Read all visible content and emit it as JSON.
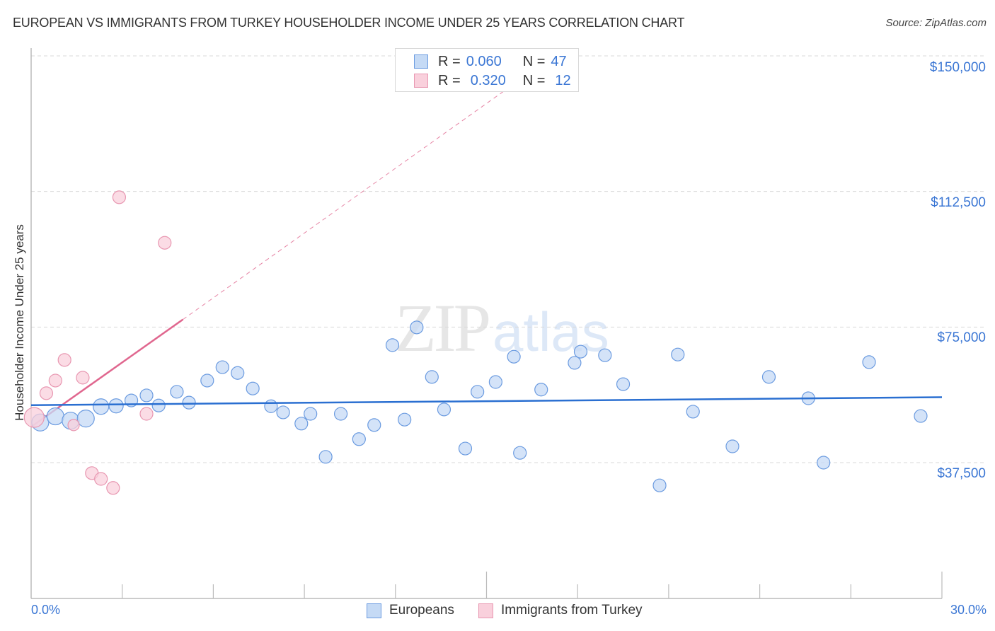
{
  "header": {
    "title": "EUROPEAN VS IMMIGRANTS FROM TURKEY HOUSEHOLDER INCOME UNDER 25 YEARS CORRELATION CHART",
    "source": "Source: ZipAtlas.com"
  },
  "watermark": {
    "zip": "ZIP",
    "atlas": "atlas"
  },
  "colors": {
    "blue_fill": "#c5daf5",
    "blue_stroke": "#6b9be0",
    "blue_line": "#2a6fd1",
    "pink_fill": "#f9d0dc",
    "pink_stroke": "#e897b1",
    "pink_line": "#e0678f",
    "axis_text": "#3a76d4",
    "grid": "#d9d9d9"
  },
  "stats_legend": {
    "rows": [
      {
        "r_label": "R =",
        "r_value": "0.060",
        "n_label": "N =",
        "n_value": "47"
      },
      {
        "r_label": "R =",
        "r_value": "0.320",
        "n_label": "N =",
        "n_value": "12"
      }
    ]
  },
  "bottom_legend": {
    "europeans": "Europeans",
    "turkey": "Immigrants from Turkey"
  },
  "axes": {
    "y_title": "Householder Income Under 25 years",
    "y_ticks": [
      "$150,000",
      "$112,500",
      "$75,000",
      "$37,500"
    ],
    "x_min_label": "0.0%",
    "x_max_label": "30.0%"
  },
  "chart_data": {
    "type": "scatter",
    "title": "EUROPEAN VS IMMIGRANTS FROM TURKEY HOUSEHOLDER INCOME UNDER 25 YEARS CORRELATION CHART",
    "xlabel": "",
    "ylabel": "Householder Income Under 25 years",
    "xlim": [
      0,
      30
    ],
    "ylim": [
      37500,
      150000
    ],
    "x_ticks": [
      "0.0%",
      "30.0%"
    ],
    "y_ticks": [
      37500,
      75000,
      112500,
      150000
    ],
    "grid": true,
    "legend_position": "bottom",
    "series": [
      {
        "name": "Europeans",
        "R": 0.06,
        "N": 47,
        "trend": {
          "x0": 0.0,
          "y0": 53400,
          "x1": 30.0,
          "y1": 55600
        },
        "points": [
          {
            "x": 0.3,
            "y": 48600,
            "s": 12
          },
          {
            "x": 0.8,
            "y": 50300,
            "s": 12
          },
          {
            "x": 1.3,
            "y": 49100,
            "s": 12
          },
          {
            "x": 1.8,
            "y": 49700,
            "s": 12
          },
          {
            "x": 2.3,
            "y": 53000,
            "s": 11
          },
          {
            "x": 2.8,
            "y": 53200,
            "s": 10
          },
          {
            "x": 3.3,
            "y": 54700,
            "s": 9
          },
          {
            "x": 3.8,
            "y": 56100,
            "s": 9
          },
          {
            "x": 4.2,
            "y": 53300,
            "s": 9
          },
          {
            "x": 4.8,
            "y": 57100,
            "s": 9
          },
          {
            "x": 5.2,
            "y": 54100,
            "s": 9
          },
          {
            "x": 5.8,
            "y": 60200,
            "s": 9
          },
          {
            "x": 6.3,
            "y": 63900,
            "s": 9
          },
          {
            "x": 6.8,
            "y": 62300,
            "s": 9
          },
          {
            "x": 7.3,
            "y": 58000,
            "s": 9
          },
          {
            "x": 7.9,
            "y": 53100,
            "s": 9
          },
          {
            "x": 8.3,
            "y": 51400,
            "s": 9
          },
          {
            "x": 8.9,
            "y": 48300,
            "s": 9
          },
          {
            "x": 9.2,
            "y": 51000,
            "s": 9
          },
          {
            "x": 9.7,
            "y": 39100,
            "s": 9
          },
          {
            "x": 10.2,
            "y": 51000,
            "s": 9
          },
          {
            "x": 10.8,
            "y": 44000,
            "s": 9
          },
          {
            "x": 11.3,
            "y": 47900,
            "s": 9
          },
          {
            "x": 11.9,
            "y": 70000,
            "s": 9
          },
          {
            "x": 12.3,
            "y": 49400,
            "s": 9
          },
          {
            "x": 12.7,
            "y": 74900,
            "s": 9
          },
          {
            "x": 13.2,
            "y": 61200,
            "s": 9
          },
          {
            "x": 13.6,
            "y": 52200,
            "s": 9
          },
          {
            "x": 14.3,
            "y": 41400,
            "s": 9
          },
          {
            "x": 14.7,
            "y": 57100,
            "s": 9
          },
          {
            "x": 15.3,
            "y": 59800,
            "s": 9
          },
          {
            "x": 15.9,
            "y": 66800,
            "s": 9
          },
          {
            "x": 16.1,
            "y": 40200,
            "s": 9
          },
          {
            "x": 16.8,
            "y": 57700,
            "s": 9
          },
          {
            "x": 17.9,
            "y": 65100,
            "s": 9
          },
          {
            "x": 18.1,
            "y": 68200,
            "s": 9
          },
          {
            "x": 18.9,
            "y": 67200,
            "s": 9
          },
          {
            "x": 19.5,
            "y": 59200,
            "s": 9
          },
          {
            "x": 20.7,
            "y": 31200,
            "s": 9
          },
          {
            "x": 21.3,
            "y": 67400,
            "s": 9
          },
          {
            "x": 21.8,
            "y": 51600,
            "s": 9
          },
          {
            "x": 23.1,
            "y": 42000,
            "s": 9
          },
          {
            "x": 24.3,
            "y": 61200,
            "s": 9
          },
          {
            "x": 25.6,
            "y": 55300,
            "s": 9
          },
          {
            "x": 26.1,
            "y": 37500,
            "s": 9
          },
          {
            "x": 27.6,
            "y": 65300,
            "s": 9
          },
          {
            "x": 29.3,
            "y": 50400,
            "s": 9
          }
        ]
      },
      {
        "name": "Immigrants from Turkey",
        "R": 0.32,
        "N": 12,
        "trend": {
          "x0": 0.0,
          "y0": 47400,
          "x1": 5.0,
          "y1": 77100,
          "dashed_to_x": 16.7,
          "dashed_to_y": 147000
        },
        "points": [
          {
            "x": 0.1,
            "y": 50000,
            "s": 14
          },
          {
            "x": 0.5,
            "y": 56700,
            "s": 9
          },
          {
            "x": 0.8,
            "y": 60200,
            "s": 9
          },
          {
            "x": 1.1,
            "y": 65900,
            "s": 9
          },
          {
            "x": 1.7,
            "y": 61000,
            "s": 9
          },
          {
            "x": 1.4,
            "y": 47900,
            "s": 8
          },
          {
            "x": 2.9,
            "y": 110900,
            "s": 9
          },
          {
            "x": 4.4,
            "y": 98300,
            "s": 9
          },
          {
            "x": 3.8,
            "y": 51000,
            "s": 9
          },
          {
            "x": 2.0,
            "y": 34600,
            "s": 9
          },
          {
            "x": 2.3,
            "y": 33000,
            "s": 9
          },
          {
            "x": 2.7,
            "y": 30500,
            "s": 9
          }
        ]
      }
    ]
  }
}
